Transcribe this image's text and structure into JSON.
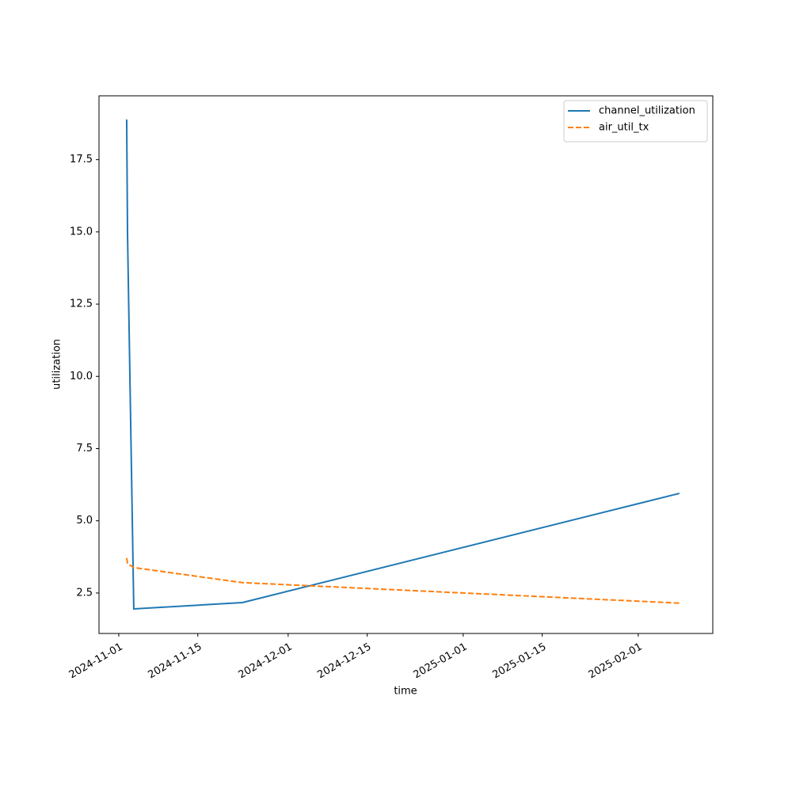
{
  "chart_data": {
    "type": "line",
    "xlabel": "time",
    "ylabel": "utilization",
    "x": [
      "2024-11-02 09:36",
      "2024-11-02 13:12",
      "2024-11-03 15:50",
      "2024-11-22 21:36",
      "2025-02-08 07:12"
    ],
    "series": [
      {
        "name": "channel_utilization",
        "color": "#1f77b4",
        "dash": "solid",
        "values": [
          18.89,
          14.95,
          1.95,
          2.17,
          5.95
        ]
      },
      {
        "name": "air_util_tx",
        "color": "#ff7f0e",
        "dash": "dashed",
        "values": [
          3.71,
          3.52,
          3.38,
          2.86,
          2.15
        ]
      }
    ],
    "xlim": [
      "2024-10-28 12:00",
      "2025-02-14 05:00"
    ],
    "xticks": [
      "2024-11-01",
      "2024-11-15",
      "2024-12-01",
      "2024-12-15",
      "2025-01-01",
      "2025-01-15",
      "2025-02-01"
    ],
    "ylim": [
      1.1,
      19.71
    ],
    "yticks": [
      2.5,
      {
        "value": 5,
        "label": "5.0"
      },
      7.5,
      {
        "value": 10,
        "label": "10.0"
      },
      12.5,
      {
        "value": 15,
        "label": "15.0"
      },
      17.5
    ],
    "grid": false,
    "legend": "upper right"
  }
}
